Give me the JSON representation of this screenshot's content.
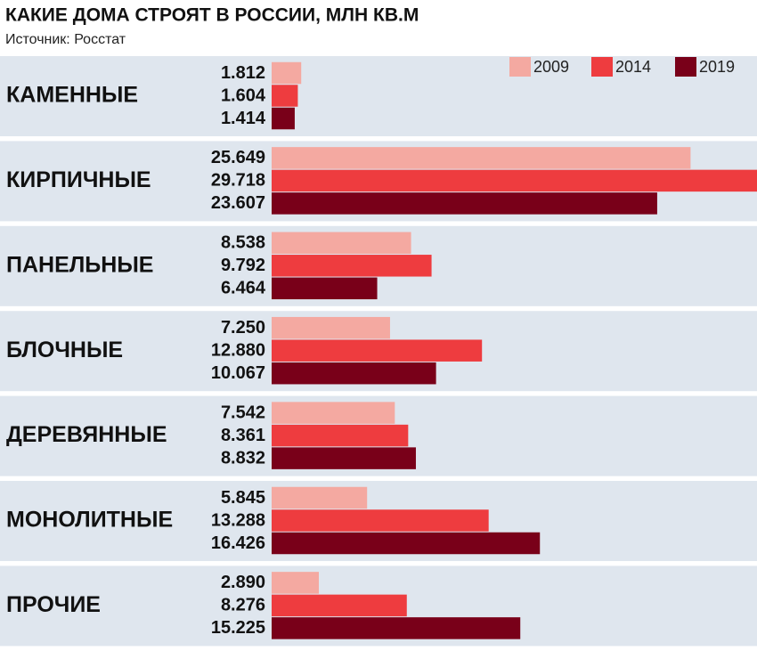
{
  "chart_data": {
    "type": "bar",
    "orientation": "horizontal",
    "title": "КАКИЕ ДОМА СТРОЯТ В РОССИИ, МЛН КВ.М",
    "subtitle": "Источник: Росстат",
    "categories": [
      "КАМЕННЫЕ",
      "КИРПИЧНЫЕ",
      "ПАНЕЛЬНЫЕ",
      "БЛОЧНЫЕ",
      "ДЕРЕВЯННЫЕ",
      "МОНОЛИТНЫЕ",
      "ПРОЧИЕ"
    ],
    "series": [
      {
        "name": "2009",
        "color": "#f4a9a1",
        "values": [
          1.812,
          25.649,
          8.538,
          7.25,
          7.542,
          5.845,
          2.89
        ],
        "value_labels": [
          "1.812",
          "25.649",
          "8.538",
          "7.250",
          "7.542",
          "5.845",
          "2.890"
        ]
      },
      {
        "name": "2014",
        "color": "#ee3c3f",
        "values": [
          1.604,
          29.718,
          9.792,
          12.88,
          8.361,
          13.288,
          8.276
        ],
        "value_labels": [
          "1.604",
          "29.718",
          "9.792",
          "12.880",
          "8.361",
          "13.288",
          "8.276"
        ]
      },
      {
        "name": "2019",
        "color": "#790019",
        "values": [
          1.414,
          23.607,
          6.464,
          10.067,
          8.832,
          16.426,
          15.225
        ],
        "value_labels": [
          "1.414",
          "23.607",
          "6.464",
          "10.067",
          "8.832",
          "16.426",
          "15.225"
        ]
      }
    ],
    "legend_position": "top-right"
  }
}
